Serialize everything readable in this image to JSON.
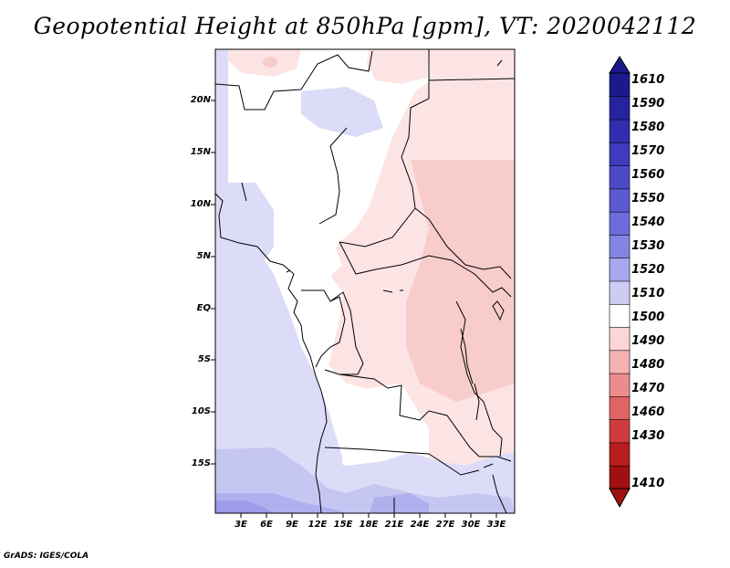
{
  "title": "Geopotential Height at 850hPa [gpm], VT: 2020042112",
  "footer": "GrADS: IGES/COLA",
  "map": {
    "region": "Central Africa",
    "lat_labels": [
      "20N",
      "15N",
      "10N",
      "5N",
      "EQ",
      "5S",
      "10S",
      "15S"
    ],
    "lon_labels": [
      "3E",
      "6E",
      "9E",
      "12E",
      "15E",
      "18E",
      "21E",
      "24E",
      "27E",
      "30E",
      "33E"
    ],
    "lat_values": [
      20,
      15,
      10,
      5,
      0,
      -5,
      -10,
      -15
    ],
    "lon_values": [
      3,
      6,
      9,
      12,
      15,
      18,
      21,
      24,
      27,
      30,
      33
    ],
    "extent": {
      "lon_min": 0,
      "lon_max": 35,
      "lat_min": -20,
      "lat_max": 25
    }
  },
  "colorbar": {
    "levels": [
      "1610",
      "1590",
      "1580",
      "1570",
      "1560",
      "1550",
      "1540",
      "1530",
      "1520",
      "1510",
      "1500",
      "1490",
      "1480",
      "1470",
      "1460",
      "1430",
      "1410"
    ],
    "colors": [
      "#1a1a8c",
      "#24249e",
      "#2e2eae",
      "#3c3cbc",
      "#4a4ac8",
      "#5a5ad2",
      "#6c6cdc",
      "#8484e4",
      "#a8a8ee",
      "#cdcdf4",
      "#ffffff",
      "#fcd6d6",
      "#f6b2b2",
      "#ec8c8c",
      "#e06464",
      "#d03c3c",
      "#b81e1e",
      "#a01010"
    ]
  },
  "field_colors": {
    "white": "#ffffff",
    "light_pink": "#fde4e4",
    "pink": "#f9cccc",
    "light_blue": "#dcdcf8",
    "blue": "#c6c6f2",
    "mid_blue": "#b0b0ee",
    "deep_blue": "#9c9cea"
  }
}
